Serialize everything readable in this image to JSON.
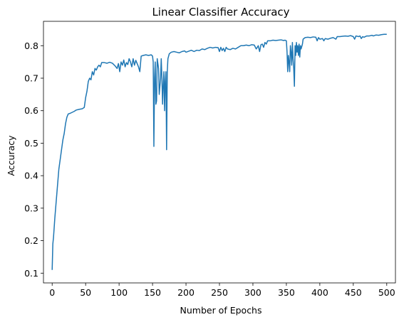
{
  "chart_data": {
    "type": "line",
    "title": "Linear Classifier Accuracy",
    "xlabel": "Number of Epochs",
    "ylabel": "Accuracy",
    "xlim": [
      -13,
      513
    ],
    "ylim": [
      0.07,
      0.875
    ],
    "xticks": [
      0,
      50,
      100,
      150,
      200,
      250,
      300,
      350,
      400,
      450,
      500
    ],
    "yticks": [
      0.1,
      0.2,
      0.3,
      0.4,
      0.5,
      0.6,
      0.7,
      0.8
    ],
    "grid": false,
    "series": [
      {
        "color": "#1f77b4",
        "points": [
          [
            0,
            0.11
          ],
          [
            1,
            0.19
          ],
          [
            2,
            0.21
          ],
          [
            4,
            0.27
          ],
          [
            6,
            0.32
          ],
          [
            8,
            0.37
          ],
          [
            10,
            0.42
          ],
          [
            12,
            0.45
          ],
          [
            14,
            0.48
          ],
          [
            16,
            0.51
          ],
          [
            18,
            0.53
          ],
          [
            20,
            0.56
          ],
          [
            22,
            0.58
          ],
          [
            24,
            0.59
          ],
          [
            27,
            0.592
          ],
          [
            30,
            0.595
          ],
          [
            33,
            0.598
          ],
          [
            36,
            0.602
          ],
          [
            40,
            0.604
          ],
          [
            45,
            0.606
          ],
          [
            48,
            0.61
          ],
          [
            50,
            0.64
          ],
          [
            52,
            0.66
          ],
          [
            54,
            0.69
          ],
          [
            56,
            0.7
          ],
          [
            58,
            0.695
          ],
          [
            60,
            0.72
          ],
          [
            62,
            0.71
          ],
          [
            64,
            0.73
          ],
          [
            66,
            0.725
          ],
          [
            68,
            0.735
          ],
          [
            70,
            0.74
          ],
          [
            72,
            0.735
          ],
          [
            74,
            0.748
          ],
          [
            78,
            0.748
          ],
          [
            82,
            0.746
          ],
          [
            86,
            0.749
          ],
          [
            90,
            0.746
          ],
          [
            94,
            0.738
          ],
          [
            97,
            0.73
          ],
          [
            99,
            0.745
          ],
          [
            101,
            0.72
          ],
          [
            103,
            0.75
          ],
          [
            105,
            0.74
          ],
          [
            107,
            0.756
          ],
          [
            109,
            0.735
          ],
          [
            111,
            0.748
          ],
          [
            113,
            0.742
          ],
          [
            115,
            0.76
          ],
          [
            117,
            0.75
          ],
          [
            119,
            0.735
          ],
          [
            121,
            0.76
          ],
          [
            123,
            0.74
          ],
          [
            125,
            0.755
          ],
          [
            127,
            0.745
          ],
          [
            129,
            0.735
          ],
          [
            131,
            0.72
          ],
          [
            133,
            0.768
          ],
          [
            136,
            0.77
          ],
          [
            140,
            0.772
          ],
          [
            144,
            0.77
          ],
          [
            148,
            0.772
          ],
          [
            150,
            0.768
          ],
          [
            151,
            0.75
          ],
          [
            152,
            0.49
          ],
          [
            153,
            0.7
          ],
          [
            154,
            0.75
          ],
          [
            155,
            0.62
          ],
          [
            156,
            0.63
          ],
          [
            157,
            0.76
          ],
          [
            159,
            0.73
          ],
          [
            160,
            0.65
          ],
          [
            162,
            0.7
          ],
          [
            163,
            0.76
          ],
          [
            164,
            0.7
          ],
          [
            165,
            0.62
          ],
          [
            166,
            0.68
          ],
          [
            167,
            0.72
          ],
          [
            168,
            0.6
          ],
          [
            169,
            0.69
          ],
          [
            170,
            0.72
          ],
          [
            171,
            0.48
          ],
          [
            172,
            0.72
          ],
          [
            173,
            0.76
          ],
          [
            175,
            0.775
          ],
          [
            178,
            0.78
          ],
          [
            182,
            0.782
          ],
          [
            186,
            0.78
          ],
          [
            190,
            0.778
          ],
          [
            194,
            0.782
          ],
          [
            198,
            0.784
          ],
          [
            200,
            0.78
          ],
          [
            204,
            0.783
          ],
          [
            208,
            0.786
          ],
          [
            212,
            0.782
          ],
          [
            216,
            0.786
          ],
          [
            220,
            0.785
          ],
          [
            224,
            0.79
          ],
          [
            228,
            0.788
          ],
          [
            232,
            0.792
          ],
          [
            236,
            0.795
          ],
          [
            240,
            0.793
          ],
          [
            244,
            0.795
          ],
          [
            248,
            0.794
          ],
          [
            250,
            0.782
          ],
          [
            252,
            0.795
          ],
          [
            254,
            0.785
          ],
          [
            256,
            0.792
          ],
          [
            258,
            0.782
          ],
          [
            260,
            0.795
          ],
          [
            262,
            0.79
          ],
          [
            266,
            0.788
          ],
          [
            270,
            0.792
          ],
          [
            274,
            0.79
          ],
          [
            278,
            0.795
          ],
          [
            282,
            0.8
          ],
          [
            286,
            0.8
          ],
          [
            290,
            0.802
          ],
          [
            294,
            0.8
          ],
          [
            298,
            0.803
          ],
          [
            302,
            0.802
          ],
          [
            305,
            0.79
          ],
          [
            308,
            0.8
          ],
          [
            310,
            0.782
          ],
          [
            312,
            0.803
          ],
          [
            314,
            0.805
          ],
          [
            316,
            0.795
          ],
          [
            318,
            0.81
          ],
          [
            320,
            0.805
          ],
          [
            322,
            0.815
          ],
          [
            326,
            0.815
          ],
          [
            330,
            0.817
          ],
          [
            334,
            0.816
          ],
          [
            338,
            0.817
          ],
          [
            342,
            0.818
          ],
          [
            346,
            0.816
          ],
          [
            348,
            0.817
          ],
          [
            350,
            0.815
          ],
          [
            351,
            0.78
          ],
          [
            352,
            0.72
          ],
          [
            353,
            0.77
          ],
          [
            354,
            0.75
          ],
          [
            355,
            0.72
          ],
          [
            356,
            0.8
          ],
          [
            357,
            0.78
          ],
          [
            358,
            0.74
          ],
          [
            359,
            0.81
          ],
          [
            360,
            0.76
          ],
          [
            361,
            0.73
          ],
          [
            362,
            0.675
          ],
          [
            363,
            0.8
          ],
          [
            364,
            0.77
          ],
          [
            365,
            0.81
          ],
          [
            366,
            0.78
          ],
          [
            367,
            0.8
          ],
          [
            368,
            0.77
          ],
          [
            369,
            0.805
          ],
          [
            370,
            0.765
          ],
          [
            371,
            0.8
          ],
          [
            372,
            0.79
          ],
          [
            374,
            0.805
          ],
          [
            375,
            0.82
          ],
          [
            378,
            0.825
          ],
          [
            382,
            0.826
          ],
          [
            386,
            0.825
          ],
          [
            390,
            0.827
          ],
          [
            394,
            0.826
          ],
          [
            396,
            0.815
          ],
          [
            398,
            0.825
          ],
          [
            400,
            0.82
          ],
          [
            404,
            0.822
          ],
          [
            406,
            0.815
          ],
          [
            408,
            0.822
          ],
          [
            412,
            0.82
          ],
          [
            416,
            0.823
          ],
          [
            420,
            0.825
          ],
          [
            424,
            0.82
          ],
          [
            426,
            0.828
          ],
          [
            430,
            0.828
          ],
          [
            434,
            0.829
          ],
          [
            438,
            0.83
          ],
          [
            442,
            0.829
          ],
          [
            446,
            0.831
          ],
          [
            450,
            0.828
          ],
          [
            452,
            0.82
          ],
          [
            454,
            0.83
          ],
          [
            458,
            0.828
          ],
          [
            460,
            0.83
          ],
          [
            462,
            0.822
          ],
          [
            464,
            0.828
          ],
          [
            466,
            0.826
          ],
          [
            470,
            0.83
          ],
          [
            474,
            0.83
          ],
          [
            478,
            0.832
          ],
          [
            480,
            0.83
          ],
          [
            484,
            0.833
          ],
          [
            488,
            0.832
          ],
          [
            492,
            0.834
          ],
          [
            496,
            0.835
          ],
          [
            500,
            0.835
          ]
        ]
      }
    ]
  }
}
